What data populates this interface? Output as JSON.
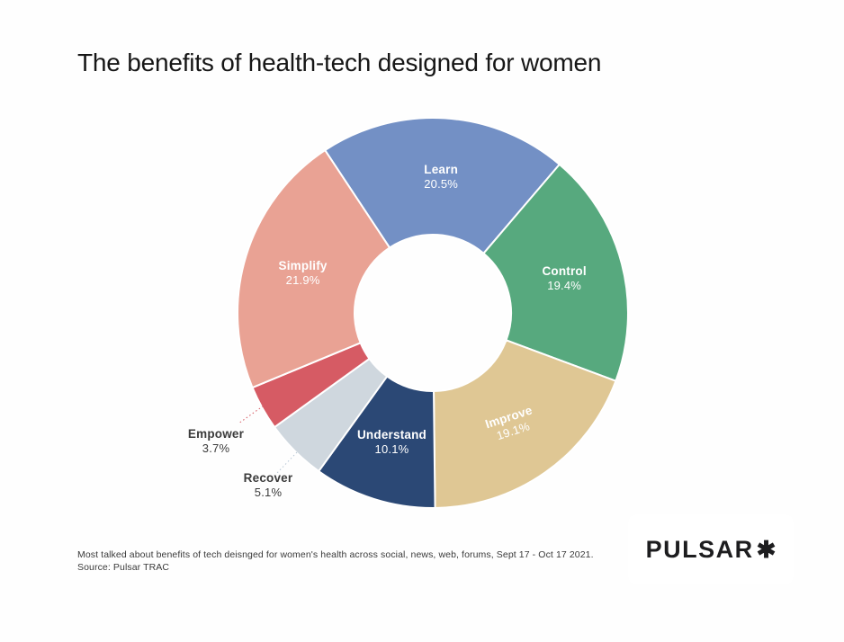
{
  "title": "The benefits of health-tech designed for women",
  "footer": {
    "caption": "Most talked about benefits of tech deisnged for women's health across social, news, web, forums, Sept 17 - Oct 17 2021.",
    "source": "Source: Pulsar TRAC"
  },
  "logo": {
    "text": "PULSAR",
    "mark": "✱"
  },
  "chart_data": {
    "type": "pie",
    "subtype": "donut",
    "title": "The benefits of health-tech designed for women",
    "direction": "clockwise",
    "start_angle_deg": -33.5,
    "inner_radius_ratio": 0.4,
    "legend": "none",
    "label_style": "name and percent inside slices; small slices labeled outside with dotted leader lines",
    "slices": [
      {
        "label": "Learn",
        "value": 20.5,
        "color": "#7390C5",
        "label_placement": "inside"
      },
      {
        "label": "Control",
        "value": 19.4,
        "color": "#57A97E",
        "label_placement": "inside"
      },
      {
        "label": "Improve",
        "value": 19.1,
        "color": "#DFC794",
        "label_placement": "inside",
        "label_rotation": -18
      },
      {
        "label": "Understand",
        "value": 10.1,
        "color": "#2B4875",
        "label_placement": "inside"
      },
      {
        "label": "Recover",
        "value": 5.1,
        "color": "#CFD7DE",
        "label_placement": "outside",
        "label_xy": [
          298,
          540
        ],
        "leader": [
          [
            330,
            503
          ],
          [
            308,
            526
          ]
        ],
        "leader_color": "#B7C6D4"
      },
      {
        "label": "Empower",
        "value": 3.7,
        "color": "#D65B64",
        "label_placement": "outside",
        "label_xy": [
          240,
          491
        ],
        "leader": [
          [
            296,
            449
          ],
          [
            265,
            471
          ]
        ],
        "leader_color": "#D65B64"
      },
      {
        "label": "Simplify",
        "value": 21.9,
        "color": "#E9A294",
        "label_placement": "inside"
      }
    ]
  }
}
